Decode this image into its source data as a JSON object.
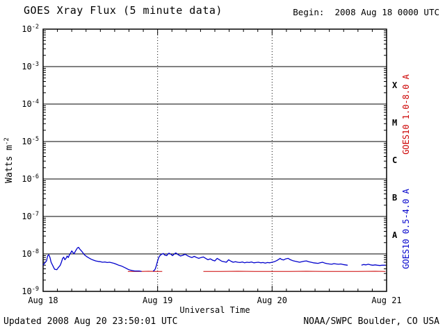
{
  "chart_data": {
    "type": "line",
    "title": "GOES Xray Flux (5 minute data)",
    "begin_label": "Begin:  2008 Aug 18 0000 UTC",
    "xlabel": "Universal Time",
    "ylabel_base": "Watts m",
    "ylabel_exponent": "-2",
    "footer_left": "Updated 2008 Aug 20 23:50:01 UTC",
    "footer_right": "NOAA/SWPC Boulder, CO USA",
    "x_range": [
      0,
      3
    ],
    "y_log_range": [
      -9,
      -2
    ],
    "x_ticks": [
      {
        "pos": 0,
        "label": "Aug 18"
      },
      {
        "pos": 1,
        "label": "Aug 19"
      },
      {
        "pos": 2,
        "label": "Aug 20"
      },
      {
        "pos": 3,
        "label": "Aug 21"
      }
    ],
    "y_exponents": [
      -2,
      -3,
      -4,
      -5,
      -6,
      -7,
      -8,
      -9
    ],
    "flux_classes": [
      {
        "label": "X",
        "log_center": -3.5
      },
      {
        "label": "M",
        "log_center": -4.5
      },
      {
        "label": "C",
        "log_center": -5.5
      },
      {
        "label": "B",
        "log_center": -6.5
      },
      {
        "label": "A",
        "log_center": -7.5
      }
    ],
    "grid": {
      "decade_lines": true,
      "day_dotted_lines": [
        1,
        2
      ]
    },
    "series": [
      {
        "name": "GOES10 1.0-8.0 A",
        "color": "#cc0000",
        "width": 1.0,
        "segments": [
          [
            [
              0.74,
              3.4e-09
            ],
            [
              0.8,
              3.4e-09
            ],
            [
              0.86,
              3.4e-09
            ],
            [
              0.92,
              3.45e-09
            ],
            [
              0.98,
              3.4e-09
            ],
            [
              1.04,
              3.4e-09
            ]
          ],
          [
            [
              1.4,
              3.4e-09
            ],
            [
              1.55,
              3.4e-09
            ],
            [
              1.7,
              3.45e-09
            ],
            [
              1.85,
              3.4e-09
            ],
            [
              2.0,
              3.4e-09
            ],
            [
              2.15,
              3.4e-09
            ],
            [
              2.3,
              3.45e-09
            ],
            [
              2.45,
              3.4e-09
            ],
            [
              2.6,
              3.4e-09
            ],
            [
              2.75,
              3.4e-09
            ],
            [
              2.9,
              3.45e-09
            ],
            [
              2.99,
              3.4e-09
            ]
          ]
        ]
      },
      {
        "name": "GOES10 0.5-4.0 A",
        "color": "#0000cc",
        "width": 1.3,
        "segments": [
          [
            [
              0.0,
              5e-09
            ],
            [
              0.01,
              5.5e-09
            ],
            [
              0.03,
              6.5e-09
            ],
            [
              0.04,
              9e-09
            ],
            [
              0.05,
              9.5e-09
            ],
            [
              0.06,
              8e-09
            ],
            [
              0.07,
              6e-09
            ],
            [
              0.09,
              4.5e-09
            ],
            [
              0.1,
              3.9e-09
            ],
            [
              0.12,
              3.8e-09
            ],
            [
              0.13,
              4.2e-09
            ],
            [
              0.15,
              5e-09
            ],
            [
              0.16,
              6e-09
            ],
            [
              0.17,
              7.5e-09
            ],
            [
              0.18,
              8.2e-09
            ],
            [
              0.19,
              7e-09
            ],
            [
              0.2,
              7.6e-09
            ],
            [
              0.21,
              8.8e-09
            ],
            [
              0.22,
              8e-09
            ],
            [
              0.23,
              9.5e-09
            ],
            [
              0.24,
              1.05e-08
            ],
            [
              0.25,
              1.2e-08
            ],
            [
              0.26,
              1.1e-08
            ],
            [
              0.27,
              1e-08
            ],
            [
              0.28,
              1.15e-08
            ],
            [
              0.29,
              1.3e-08
            ],
            [
              0.3,
              1.45e-08
            ],
            [
              0.31,
              1.5e-08
            ],
            [
              0.32,
              1.35e-08
            ],
            [
              0.33,
              1.25e-08
            ],
            [
              0.34,
              1.15e-08
            ],
            [
              0.35,
              1.05e-08
            ],
            [
              0.36,
              9.5e-09
            ],
            [
              0.38,
              8.5e-09
            ],
            [
              0.4,
              7.8e-09
            ],
            [
              0.42,
              7.2e-09
            ],
            [
              0.44,
              6.8e-09
            ],
            [
              0.46,
              6.5e-09
            ],
            [
              0.48,
              6.3e-09
            ],
            [
              0.5,
              6.2e-09
            ],
            [
              0.52,
              6e-09
            ],
            [
              0.54,
              6.1e-09
            ],
            [
              0.56,
              5.9e-09
            ],
            [
              0.58,
              6e-09
            ],
            [
              0.6,
              5.8e-09
            ],
            [
              0.62,
              5.6e-09
            ],
            [
              0.64,
              5.3e-09
            ],
            [
              0.66,
              5e-09
            ],
            [
              0.68,
              4.8e-09
            ],
            [
              0.7,
              4.5e-09
            ],
            [
              0.72,
              4.2e-09
            ],
            [
              0.74,
              3.9e-09
            ],
            [
              0.76,
              3.7e-09
            ],
            [
              0.78,
              3.6e-09
            ],
            [
              0.8,
              3.5e-09
            ],
            [
              0.82,
              3.5e-09
            ],
            [
              0.84,
              3.5e-09
            ],
            [
              0.86,
              3.4e-09
            ]
          ],
          [
            [
              0.96,
              3.5e-09
            ],
            [
              0.97,
              3.6e-09
            ],
            [
              0.98,
              4e-09
            ],
            [
              0.99,
              5e-09
            ],
            [
              1.0,
              6.5e-09
            ],
            [
              1.01,
              8e-09
            ],
            [
              1.02,
              9e-09
            ],
            [
              1.03,
              9.6e-09
            ],
            [
              1.05,
              1.03e-08
            ],
            [
              1.06,
              9.4e-09
            ],
            [
              1.08,
              9e-09
            ],
            [
              1.09,
              1e-08
            ],
            [
              1.1,
              1.05e-08
            ],
            [
              1.12,
              9.6e-09
            ],
            [
              1.13,
              9e-09
            ],
            [
              1.15,
              1.02e-08
            ],
            [
              1.16,
              1.06e-08
            ],
            [
              1.18,
              9.5e-09
            ],
            [
              1.2,
              8.8e-09
            ],
            [
              1.22,
              9.2e-09
            ],
            [
              1.24,
              9.8e-09
            ],
            [
              1.26,
              9e-09
            ],
            [
              1.28,
              8.4e-09
            ],
            [
              1.3,
              8e-09
            ],
            [
              1.32,
              8.6e-09
            ],
            [
              1.34,
              8e-09
            ],
            [
              1.36,
              7.6e-09
            ],
            [
              1.38,
              8e-09
            ],
            [
              1.4,
              8.3e-09
            ],
            [
              1.42,
              7.6e-09
            ],
            [
              1.44,
              7e-09
            ],
            [
              1.46,
              7.4e-09
            ],
            [
              1.48,
              6.8e-09
            ],
            [
              1.5,
              6.5e-09
            ],
            [
              1.52,
              7.6e-09
            ],
            [
              1.54,
              7e-09
            ],
            [
              1.56,
              6.4e-09
            ],
            [
              1.58,
              6.2e-09
            ],
            [
              1.6,
              6e-09
            ],
            [
              1.62,
              7e-09
            ],
            [
              1.64,
              6.4e-09
            ],
            [
              1.66,
              6e-09
            ],
            [
              1.68,
              6.2e-09
            ],
            [
              1.7,
              6e-09
            ],
            [
              1.72,
              5.9e-09
            ],
            [
              1.74,
              6.1e-09
            ],
            [
              1.76,
              5.8e-09
            ],
            [
              1.78,
              6e-09
            ],
            [
              1.8,
              5.9e-09
            ],
            [
              1.82,
              6.1e-09
            ],
            [
              1.84,
              5.8e-09
            ],
            [
              1.86,
              5.9e-09
            ],
            [
              1.88,
              6e-09
            ],
            [
              1.9,
              5.8e-09
            ],
            [
              1.92,
              5.9e-09
            ],
            [
              1.94,
              5.7e-09
            ],
            [
              1.96,
              5.9e-09
            ],
            [
              1.98,
              5.8e-09
            ],
            [
              2.0,
              6e-09
            ],
            [
              2.02,
              6.2e-09
            ],
            [
              2.04,
              6.6e-09
            ],
            [
              2.06,
              7.2e-09
            ],
            [
              2.07,
              7.6e-09
            ],
            [
              2.08,
              7.2e-09
            ],
            [
              2.1,
              6.9e-09
            ],
            [
              2.12,
              7.4e-09
            ],
            [
              2.14,
              7.6e-09
            ],
            [
              2.16,
              7e-09
            ],
            [
              2.18,
              6.6e-09
            ],
            [
              2.2,
              6.4e-09
            ],
            [
              2.22,
              6.2e-09
            ],
            [
              2.24,
              6e-09
            ],
            [
              2.26,
              6.2e-09
            ],
            [
              2.28,
              6.4e-09
            ],
            [
              2.3,
              6.5e-09
            ],
            [
              2.32,
              6.2e-09
            ],
            [
              2.34,
              6e-09
            ],
            [
              2.36,
              5.8e-09
            ],
            [
              2.38,
              5.7e-09
            ],
            [
              2.4,
              5.6e-09
            ],
            [
              2.42,
              5.8e-09
            ],
            [
              2.44,
              6e-09
            ],
            [
              2.46,
              5.7e-09
            ],
            [
              2.48,
              5.5e-09
            ],
            [
              2.5,
              5.4e-09
            ],
            [
              2.52,
              5.3e-09
            ],
            [
              2.54,
              5.5e-09
            ],
            [
              2.56,
              5.4e-09
            ],
            [
              2.58,
              5.3e-09
            ],
            [
              2.6,
              5.4e-09
            ],
            [
              2.62,
              5.2e-09
            ],
            [
              2.64,
              5.1e-09
            ],
            [
              2.66,
              5e-09
            ]
          ],
          [
            [
              2.78,
              5e-09
            ],
            [
              2.8,
              5.2e-09
            ],
            [
              2.82,
              5.1e-09
            ],
            [
              2.84,
              5.3e-09
            ],
            [
              2.86,
              5.1e-09
            ],
            [
              2.88,
              5e-09
            ],
            [
              2.9,
              5.1e-09
            ],
            [
              2.92,
              5e-09
            ],
            [
              2.94,
              4.9e-09
            ],
            [
              2.96,
              5e-09
            ],
            [
              2.99,
              5e-09
            ]
          ]
        ]
      }
    ]
  }
}
